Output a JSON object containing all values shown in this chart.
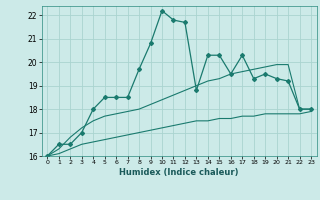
{
  "xlabel": "Humidex (Indice chaleur)",
  "background_color": "#cceae8",
  "grid_color": "#aad4d0",
  "line_color": "#1a7a6e",
  "xlim": [
    -0.5,
    23.5
  ],
  "ylim": [
    16,
    22.4
  ],
  "xticks": [
    0,
    1,
    2,
    3,
    4,
    5,
    6,
    7,
    8,
    9,
    10,
    11,
    12,
    13,
    14,
    15,
    16,
    17,
    18,
    19,
    20,
    21,
    22,
    23
  ],
  "yticks": [
    16,
    17,
    18,
    19,
    20,
    21,
    22
  ],
  "main_line_x": [
    0,
    1,
    2,
    3,
    4,
    5,
    6,
    7,
    8,
    9,
    10,
    11,
    12,
    13,
    14,
    15,
    16,
    17,
    18,
    19,
    20,
    21,
    22,
    23
  ],
  "main_line_y": [
    16.0,
    16.5,
    16.5,
    17.0,
    18.0,
    18.5,
    18.5,
    18.5,
    19.7,
    20.8,
    22.2,
    21.8,
    21.7,
    18.8,
    20.3,
    20.3,
    19.5,
    20.3,
    19.3,
    19.5,
    19.3,
    19.2,
    18.0,
    18.0
  ],
  "upper_line_x": [
    0,
    1,
    2,
    3,
    4,
    5,
    6,
    7,
    8,
    9,
    10,
    11,
    12,
    13,
    14,
    15,
    16,
    17,
    18,
    19,
    20,
    21,
    22,
    23
  ],
  "upper_line_y": [
    16.0,
    16.3,
    16.8,
    17.2,
    17.5,
    17.7,
    17.8,
    17.9,
    18.0,
    18.2,
    18.4,
    18.6,
    18.8,
    19.0,
    19.2,
    19.3,
    19.5,
    19.6,
    19.7,
    19.8,
    19.9,
    19.9,
    18.0,
    18.0
  ],
  "lower_line_x": [
    0,
    1,
    2,
    3,
    4,
    5,
    6,
    7,
    8,
    9,
    10,
    11,
    12,
    13,
    14,
    15,
    16,
    17,
    18,
    19,
    20,
    21,
    22,
    23
  ],
  "lower_line_y": [
    16.0,
    16.1,
    16.3,
    16.5,
    16.6,
    16.7,
    16.8,
    16.9,
    17.0,
    17.1,
    17.2,
    17.3,
    17.4,
    17.5,
    17.5,
    17.6,
    17.6,
    17.7,
    17.7,
    17.8,
    17.8,
    17.8,
    17.8,
    17.9
  ]
}
